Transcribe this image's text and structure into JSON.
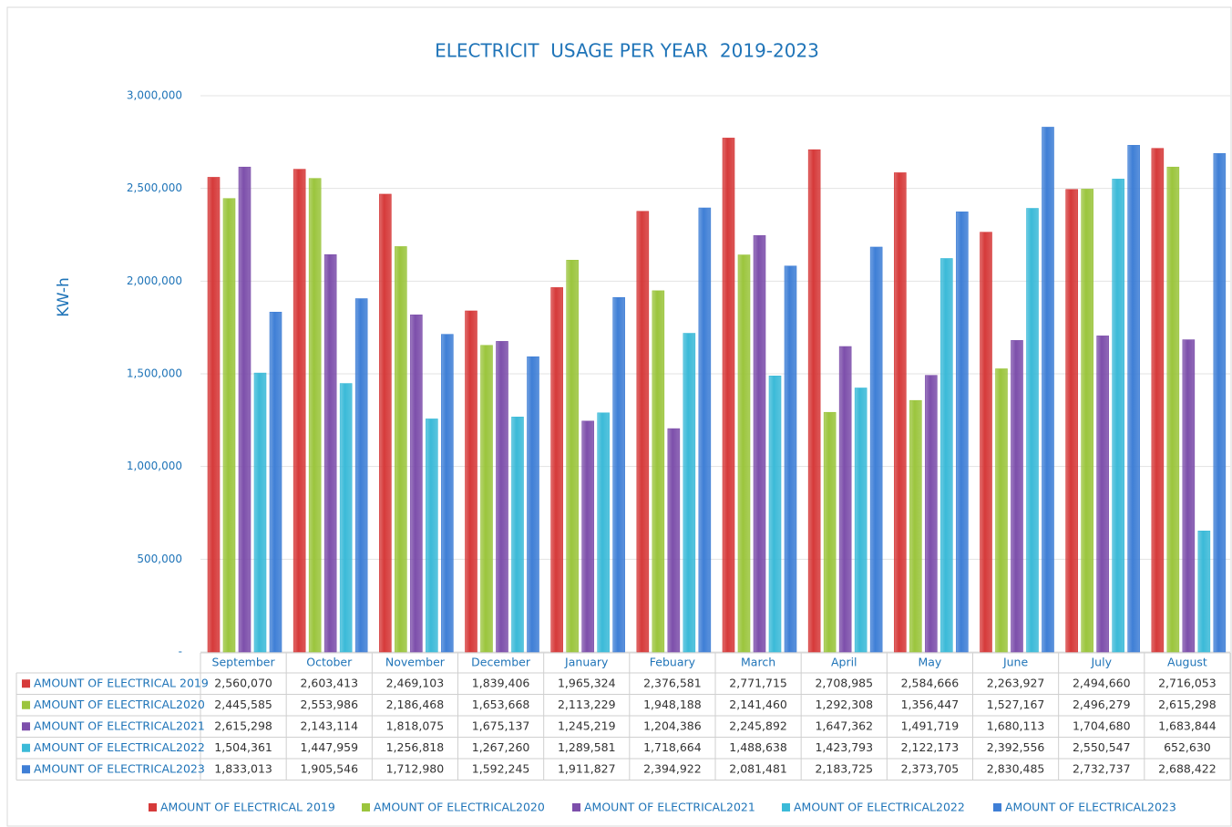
{
  "chart_data": {
    "type": "bar",
    "title": "ELECTRICIT  USAGE PER YEAR  2019-2023",
    "y_label": "KW-h",
    "categories": [
      "September",
      "October",
      "November",
      "December",
      "January",
      "Febuary",
      "March",
      "April",
      "May",
      "June",
      "July",
      "August"
    ],
    "ylim": [
      0,
      3000000
    ],
    "yticks": [
      {
        "value": 0,
        "label": "-"
      },
      {
        "value": 500000,
        "label": "500,000"
      },
      {
        "value": 1000000,
        "label": "1,000,000"
      },
      {
        "value": 1500000,
        "label": "1,500,000"
      },
      {
        "value": 2000000,
        "label": "2,000,000"
      },
      {
        "value": 2500000,
        "label": "2,500,000"
      },
      {
        "value": 3000000,
        "label": "3,000,000"
      }
    ],
    "grid": true,
    "legend": "bottom",
    "series": [
      {
        "name": "AMOUNT OF ELECTRICAL 2019",
        "color": "#d63a3a",
        "values": [
          2560070,
          2603413,
          2469103,
          1839406,
          1965324,
          2376581,
          2771715,
          2708985,
          2584666,
          2263927,
          2494660,
          2716053
        ],
        "value_labels": [
          "2,560,070",
          "2,603,413",
          "2,469,103",
          "1,839,406",
          "1,965,324",
          "2,376,581",
          "2,771,715",
          "2,708,985",
          "2,584,666",
          "2,263,927",
          "2,494,660",
          "2,716,053"
        ]
      },
      {
        "name": "AMOUNT OF ELECTRICAL2020",
        "color": "#9bc53d",
        "values": [
          2445585,
          2553986,
          2186468,
          1653668,
          2113229,
          1948188,
          2141460,
          1292308,
          1356447,
          1527167,
          2496279,
          2615298
        ],
        "value_labels": [
          "2,445,585",
          "2,553,986",
          "2,186,468",
          "1,653,668",
          "2,113,229",
          "1,948,188",
          "2,141,460",
          "1,292,308",
          "1,356,447",
          "1,527,167",
          "2,496,279",
          "2,615,298"
        ]
      },
      {
        "name": "AMOUNT OF ELECTRICAL2021",
        "color": "#7d4fab",
        "values": [
          2615298,
          2143114,
          1818075,
          1675137,
          1245219,
          1204386,
          2245892,
          1647362,
          1491719,
          1680113,
          1704680,
          1683844
        ],
        "value_labels": [
          "2,615,298",
          "2,143,114",
          "1,818,075",
          "1,675,137",
          "1,245,219",
          "1,204,386",
          "2,245,892",
          "1,647,362",
          "1,491,719",
          "1,680,113",
          "1,704,680",
          "1,683,844"
        ]
      },
      {
        "name": "AMOUNT OF ELECTRICAL2022",
        "color": "#3bbad8",
        "values": [
          1504361,
          1447959,
          1256818,
          1267260,
          1289581,
          1718664,
          1488638,
          1423793,
          2122173,
          2392556,
          2550547,
          652630
        ],
        "value_labels": [
          "1,504,361",
          "1,447,959",
          "1,256,818",
          "1,267,260",
          "1,289,581",
          "1,718,664",
          "1,488,638",
          "1,423,793",
          "2,122,173",
          "2,392,556",
          "2,550,547",
          "652,630"
        ]
      },
      {
        "name": "AMOUNT OF ELECTRICAL2023",
        "color": "#3f7fd6",
        "values": [
          1833013,
          1905546,
          1712980,
          1592245,
          1911827,
          2394922,
          2081481,
          2183725,
          2373705,
          2830485,
          2732737,
          2688422
        ],
        "value_labels": [
          "1,833,013",
          "1,905,546",
          "1,712,980",
          "1,592,245",
          "1,911,827",
          "2,394,922",
          "2,081,481",
          "2,183,725",
          "2,373,705",
          "2,830,485",
          "2,732,737",
          "2,688,422"
        ]
      }
    ]
  }
}
